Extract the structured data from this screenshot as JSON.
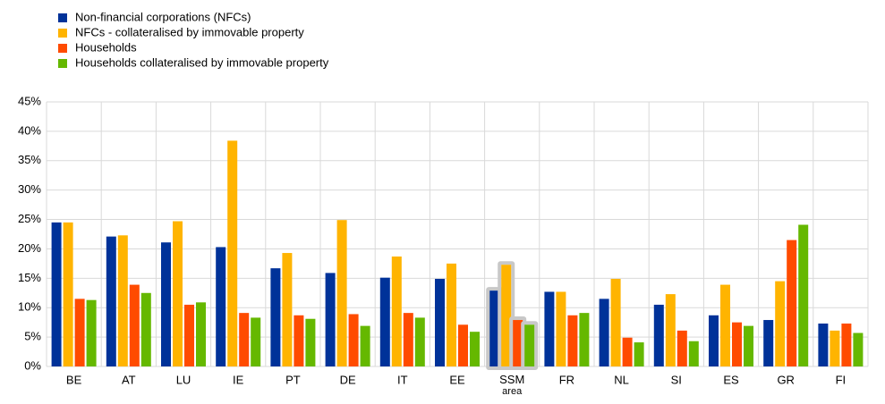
{
  "chart_data": {
    "type": "bar",
    "categories": [
      "BE",
      "AT",
      "LU",
      "IE",
      "PT",
      "DE",
      "IT",
      "EE",
      "SSM area",
      "FR",
      "NL",
      "SI",
      "ES",
      "GR",
      "FI"
    ],
    "series": [
      {
        "name": "Non-financial corporations (NFCs)",
        "color": "#003299",
        "values": [
          24.5,
          22.1,
          21.1,
          20.3,
          16.7,
          15.9,
          15.1,
          14.9,
          12.9,
          12.7,
          11.5,
          10.5,
          8.7,
          7.9,
          7.3
        ]
      },
      {
        "name": "NFCs - collateralised by immovable property",
        "color": "#ffb400",
        "values": [
          24.5,
          22.3,
          24.7,
          38.4,
          19.3,
          24.9,
          18.7,
          17.5,
          17.3,
          12.7,
          14.9,
          12.3,
          13.9,
          14.5,
          6.1
        ]
      },
      {
        "name": "Households",
        "color": "#ff4b00",
        "values": [
          11.5,
          13.9,
          10.5,
          9.1,
          8.7,
          8.9,
          9.1,
          7.1,
          7.9,
          8.7,
          4.9,
          6.1,
          7.5,
          21.5,
          7.3
        ]
      },
      {
        "name": "Households collateralised by immovable property",
        "color": "#65b800",
        "values": [
          11.3,
          12.5,
          10.9,
          8.3,
          8.1,
          6.9,
          8.3,
          5.9,
          7.1,
          9.1,
          4.1,
          4.3,
          6.9,
          24.1,
          5.7
        ]
      }
    ],
    "ylim": [
      0,
      45
    ],
    "yticks": [
      {
        "value": 0,
        "label": "0%"
      },
      {
        "value": 5,
        "label": "5%"
      },
      {
        "value": 10,
        "label": "10%"
      },
      {
        "value": 15,
        "label": "15%"
      },
      {
        "value": 20,
        "label": "20%"
      },
      {
        "value": 25,
        "label": "25%"
      },
      {
        "value": 30,
        "label": "30%"
      },
      {
        "value": 35,
        "label": "35%"
      },
      {
        "value": 40,
        "label": "40%"
      },
      {
        "value": 45,
        "label": "45%"
      }
    ],
    "grid": true,
    "legend": "top-left",
    "highlighted_categories": [
      "SSM area"
    ]
  }
}
